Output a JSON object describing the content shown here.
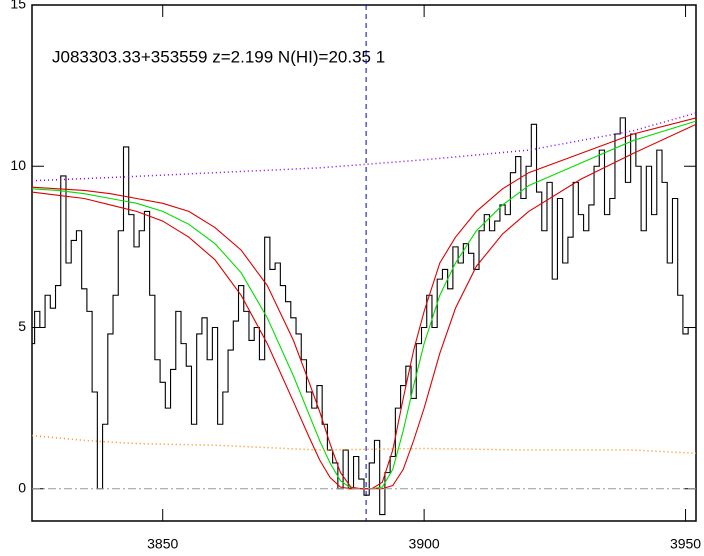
{
  "chart_data": {
    "type": "line",
    "title": "J083303.33+353559 z=2.199 N(HI)=20.35 1",
    "xlim": [
      3825,
      3952
    ],
    "ylim": [
      -1,
      15
    ],
    "xticks": [
      3850,
      3900,
      3950
    ],
    "yticks": [
      0,
      5,
      10,
      15
    ],
    "vline": {
      "x": 3888.9,
      "color": "#0000cc",
      "style": "dashed"
    },
    "series": [
      {
        "color": "#000000",
        "style": "steps",
        "x": [
          3825,
          3826,
          3827,
          3828,
          3829,
          3830,
          3831,
          3832,
          3833,
          3834,
          3835,
          3836,
          3837,
          3838,
          3839,
          3840,
          3841,
          3842,
          3843,
          3844,
          3845,
          3846,
          3847,
          3848,
          3849,
          3850,
          3851,
          3852,
          3853,
          3854,
          3855,
          3856,
          3857,
          3858,
          3859,
          3860,
          3861,
          3862,
          3863,
          3864,
          3865,
          3866,
          3867,
          3868,
          3869,
          3870,
          3871,
          3872,
          3873,
          3874,
          3875,
          3876,
          3877,
          3878,
          3879,
          3880,
          3881,
          3882,
          3883,
          3884,
          3885,
          3886,
          3887,
          3888,
          3889,
          3890,
          3891,
          3892,
          3893,
          3894,
          3895,
          3896,
          3897,
          3898,
          3899,
          3900,
          3901,
          3902,
          3903,
          3904,
          3905,
          3906,
          3907,
          3908,
          3909,
          3910,
          3911,
          3912,
          3913,
          3914,
          3915,
          3916,
          3917,
          3918,
          3919,
          3920,
          3921,
          3922,
          3923,
          3924,
          3925,
          3926,
          3927,
          3928,
          3929,
          3930,
          3931,
          3932,
          3933,
          3934,
          3935,
          3936,
          3937,
          3938,
          3939,
          3940,
          3941,
          3942,
          3943,
          3944,
          3945,
          3946,
          3947,
          3948,
          3949,
          3950,
          3951
        ],
        "values": [
          4.5,
          5.5,
          5.0,
          6.0,
          5.6,
          6.3,
          9.7,
          7.0,
          7.7,
          8.0,
          6.2,
          5.5,
          3.0,
          0.0,
          2.0,
          4.8,
          6.0,
          8.0,
          10.6,
          8.5,
          7.5,
          8.0,
          8.6,
          6.0,
          4.0,
          3.3,
          2.5,
          3.7,
          5.5,
          4.5,
          3.8,
          2.0,
          4.8,
          5.3,
          4.0,
          5.0,
          2.0,
          3.0,
          4.3,
          5.2,
          6.3,
          5.5,
          4.6,
          5.0,
          4.0,
          7.8,
          6.8,
          7.0,
          6.3,
          5.8,
          5.3,
          4.8,
          4.0,
          3.0,
          2.5,
          3.2,
          2.0,
          1.2,
          0.8,
          0.0,
          1.2,
          0.0,
          1.0,
          0.3,
          -0.2,
          0.8,
          1.5,
          -0.8,
          0.5,
          1.0,
          2.5,
          3.2,
          3.8,
          2.8,
          4.5,
          5.0,
          6.0,
          5.0,
          6.5,
          6.8,
          6.2,
          7.5,
          7.0,
          7.6,
          7.3,
          6.8,
          8.0,
          8.5,
          8.0,
          8.3,
          8.8,
          8.5,
          9.8,
          10.3,
          9.0,
          10.0,
          11.3,
          9.2,
          8.0,
          9.5,
          6.5,
          9.0,
          7.0,
          7.8,
          9.5,
          8.5,
          8.0,
          8.8,
          10.0,
          10.5,
          8.5,
          9.0,
          11.0,
          11.5,
          9.5,
          11.0,
          10.0,
          8.0,
          10.0,
          8.5,
          10.5,
          9.5,
          7.0,
          9.0,
          6.0,
          4.8,
          5.0
        ]
      },
      {
        "color": "#00dd00",
        "style": "solid",
        "x": [
          3825,
          3830,
          3835,
          3840,
          3845,
          3850,
          3855,
          3860,
          3865,
          3870,
          3875,
          3878,
          3880,
          3882,
          3884,
          3886,
          3888,
          3890,
          3892,
          3894,
          3896,
          3898,
          3900,
          3903,
          3906,
          3910,
          3915,
          3920,
          3930,
          3940,
          3952
        ],
        "values": [
          9.3,
          9.25,
          9.15,
          9.0,
          8.85,
          8.6,
          8.2,
          7.6,
          6.7,
          5.3,
          3.5,
          2.3,
          1.5,
          0.8,
          0.25,
          0.02,
          0,
          0,
          0.05,
          0.6,
          1.8,
          3.2,
          4.5,
          6.0,
          7.0,
          8.0,
          8.8,
          9.4,
          10.1,
          10.8,
          11.4
        ]
      },
      {
        "color": "#dd0000",
        "style": "solid",
        "x": [
          3825,
          3830,
          3835,
          3840,
          3845,
          3850,
          3855,
          3860,
          3865,
          3870,
          3875,
          3878,
          3880,
          3882,
          3884,
          3886,
          3888,
          3890,
          3892,
          3894,
          3896,
          3898,
          3900,
          3903,
          3906,
          3910,
          3915,
          3920,
          3930,
          3940,
          3952
        ],
        "values": [
          9.35,
          9.3,
          9.25,
          9.15,
          9.0,
          8.85,
          8.6,
          8.1,
          7.4,
          6.3,
          4.6,
          3.3,
          2.4,
          1.4,
          0.5,
          0.05,
          0,
          0,
          0.2,
          1.2,
          2.8,
          4.3,
          5.5,
          7.0,
          7.8,
          8.6,
          9.3,
          9.8,
          10.4,
          11.0,
          11.5
        ]
      },
      {
        "color": "#dd0000",
        "style": "solid",
        "x": [
          3825,
          3830,
          3835,
          3840,
          3845,
          3850,
          3855,
          3860,
          3865,
          3870,
          3875,
          3878,
          3880,
          3882,
          3884,
          3886,
          3888,
          3890,
          3892,
          3894,
          3896,
          3898,
          3900,
          3903,
          3906,
          3910,
          3915,
          3920,
          3930,
          3940,
          3952
        ],
        "values": [
          9.2,
          9.1,
          9.0,
          8.8,
          8.6,
          8.3,
          7.8,
          7.1,
          6.0,
          4.5,
          2.7,
          1.6,
          0.9,
          0.35,
          0.05,
          0,
          0,
          0,
          0,
          0.1,
          0.6,
          1.5,
          2.5,
          4.2,
          5.6,
          6.9,
          7.9,
          8.6,
          9.6,
          10.4,
          11.3
        ]
      },
      {
        "color": "#8800ff",
        "style": "dotted",
        "x": [
          3825,
          3840,
          3860,
          3880,
          3900,
          3920,
          3940,
          3952
        ],
        "values": [
          9.55,
          9.65,
          9.8,
          9.95,
          10.2,
          10.5,
          11.1,
          11.65
        ]
      },
      {
        "color": "#ff8800",
        "style": "dotted",
        "x": [
          3825,
          3835,
          3845,
          3860,
          3880,
          3900,
          3920,
          3940,
          3952
        ],
        "values": [
          1.65,
          1.5,
          1.4,
          1.35,
          1.2,
          1.25,
          1.2,
          1.2,
          1.1
        ]
      },
      {
        "color": "#999999",
        "style": "dashdot",
        "x": [
          3825,
          3952
        ],
        "values": [
          0,
          0
        ]
      }
    ]
  }
}
